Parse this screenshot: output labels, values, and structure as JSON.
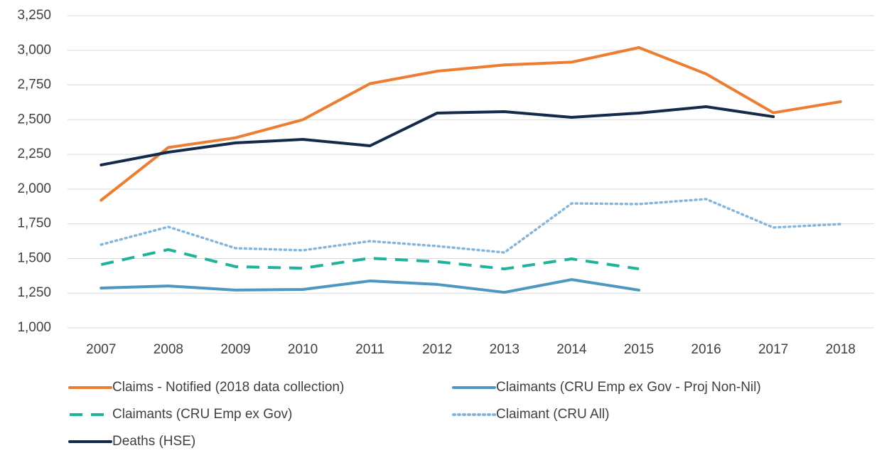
{
  "chart_data": {
    "type": "line",
    "categories": [
      "2007",
      "2008",
      "2009",
      "2010",
      "2011",
      "2012",
      "2013",
      "2014",
      "2015",
      "2016",
      "2017",
      "2018"
    ],
    "series": [
      {
        "name": "Claims - Notified (2018 data collection)",
        "color": "#ed7d31",
        "style": "solid",
        "values": [
          1920,
          2300,
          2370,
          2500,
          2760,
          2850,
          2895,
          2915,
          3020,
          2830,
          2550,
          2630
        ]
      },
      {
        "name": "Claimants (CRU Emp ex Gov - Proj Non-Nil)",
        "color": "#4d97c1",
        "style": "solid",
        "values": [
          1287,
          1302,
          1272,
          1277,
          1338,
          1313,
          1256,
          1348,
          1272,
          null,
          null,
          null
        ]
      },
      {
        "name": "Claimants (CRU Emp ex Gov)",
        "color": "#1fb39b",
        "style": "dashed",
        "values": [
          1456,
          1564,
          1441,
          1430,
          1502,
          1477,
          1425,
          1497,
          1425,
          null,
          null,
          null
        ]
      },
      {
        "name": "Claimant (CRU All)",
        "color": "#82b5df",
        "style": "dotted",
        "values": [
          1600,
          1728,
          1574,
          1559,
          1625,
          1589,
          1543,
          1897,
          1892,
          1928,
          1723,
          1748
        ]
      },
      {
        "name": "Deaths (HSE)",
        "color": "#15294a",
        "style": "solid",
        "values": [
          2174,
          2266,
          2333,
          2358,
          2312,
          2548,
          2558,
          2517,
          2548,
          2594,
          2522,
          null
        ]
      }
    ],
    "ylim": [
      1000,
      3250
    ],
    "yticks": [
      {
        "value": 1000,
        "label": "1,000"
      },
      {
        "value": 1250,
        "label": "1,250"
      },
      {
        "value": 1500,
        "label": "1,500"
      },
      {
        "value": 1750,
        "label": "1,750"
      },
      {
        "value": 2000,
        "label": "2,000"
      },
      {
        "value": 2250,
        "label": "2,250"
      },
      {
        "value": 2500,
        "label": "2,500"
      },
      {
        "value": 2750,
        "label": "2,750"
      },
      {
        "value": 3000,
        "label": "3,000"
      },
      {
        "value": 3250,
        "label": "3,250"
      }
    ],
    "grid": true,
    "legend": "bottom"
  }
}
